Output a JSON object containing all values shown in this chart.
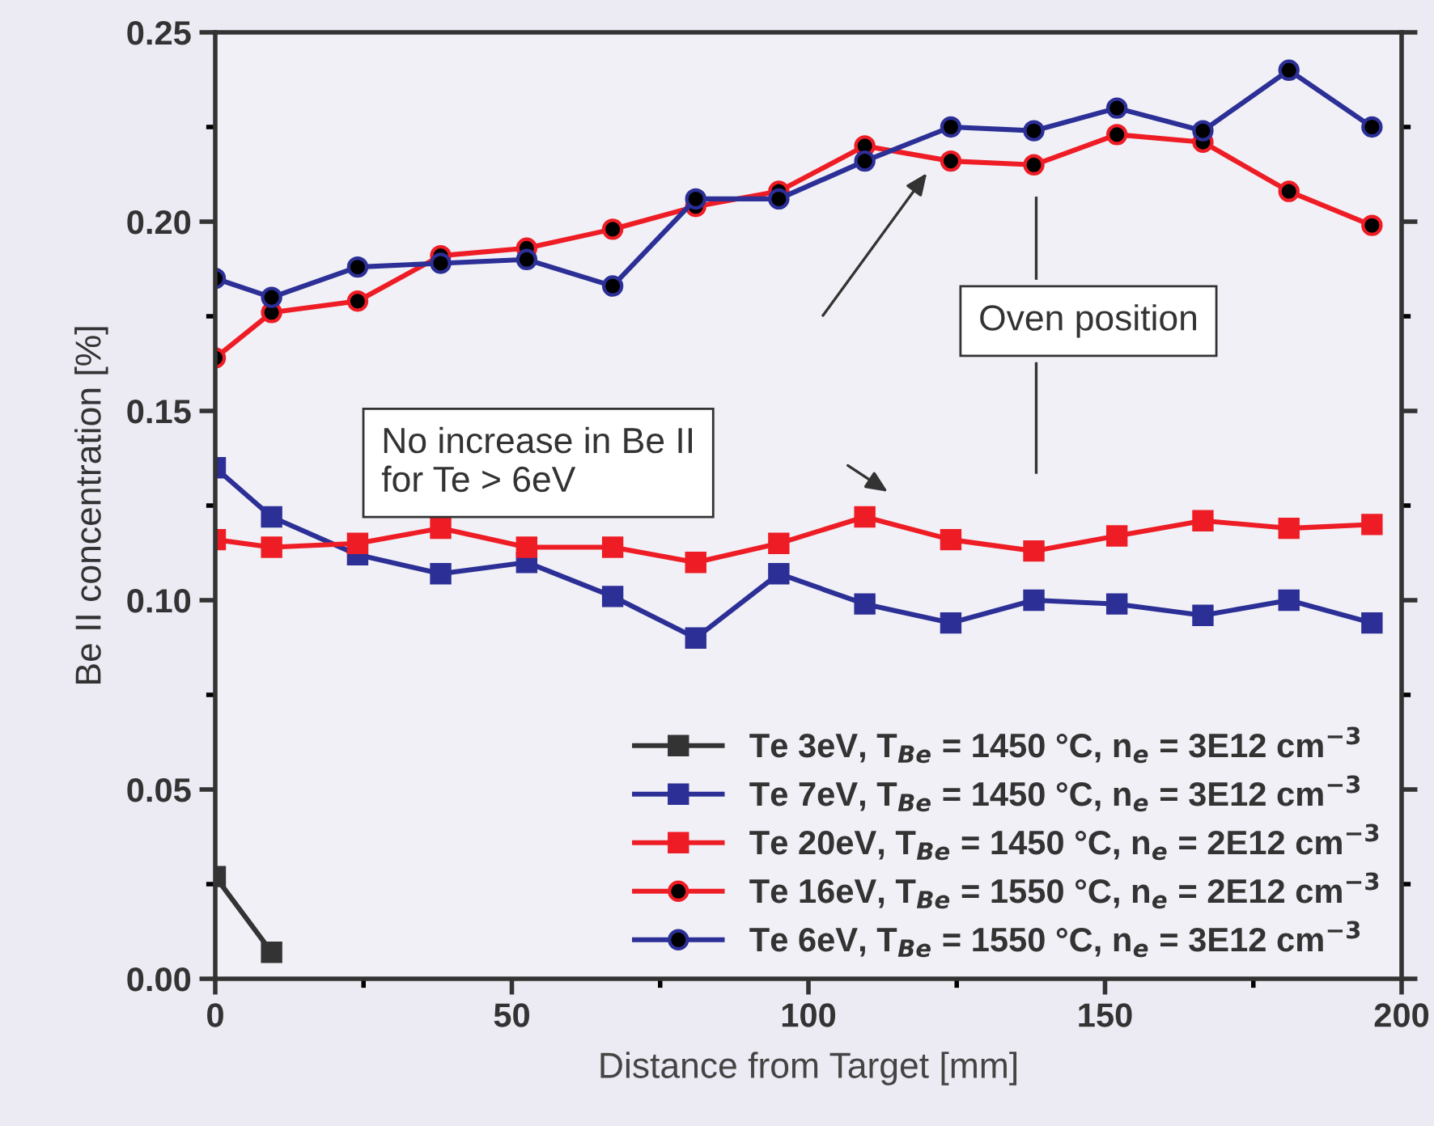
{
  "chart_data": {
    "type": "line",
    "xlabel": "Distance from Target [mm]",
    "ylabel": "Be II concentration [%]",
    "x": [
      0,
      9.5,
      24,
      38,
      52.5,
      67,
      81,
      95,
      109.5,
      124,
      138,
      152,
      166.5,
      181,
      195
    ],
    "series": [
      {
        "name": "Te 3eV, T$_{Be}$ = 1450 °C, n$_{e}$ = 3E12 cm$^{−3}$",
        "color": "#333333",
        "marker": "square",
        "values": [
          0.027,
          0.007,
          null,
          null,
          null,
          null,
          null,
          null,
          null,
          null,
          null,
          null,
          null,
          null,
          null
        ]
      },
      {
        "name": "Te 7eV, T$_{Be}$ = 1450 °C, n$_{e}$ = 3E12 cm$^{−3}$",
        "color": "#2b2f96",
        "marker": "square",
        "values": [
          0.135,
          0.122,
          0.112,
          0.107,
          0.11,
          0.101,
          0.09,
          0.107,
          0.099,
          0.094,
          0.1,
          0.099,
          0.096,
          0.1,
          0.094
        ]
      },
      {
        "name": "Te 20eV, T$_{Be}$ = 1450 °C, n$_{e}$ = 2E12 cm$^{−3}$",
        "color": "#ee1c25",
        "marker": "square",
        "values": [
          0.116,
          0.114,
          0.115,
          0.119,
          0.114,
          0.114,
          0.11,
          0.115,
          0.122,
          0.116,
          0.113,
          0.117,
          0.121,
          0.119,
          0.12
        ]
      },
      {
        "name": "Te 16eV, T$_{Be}$ = 1550 °C, n$_{e}$ = 2E12 cm$^{−3}$",
        "color": "#ee1c25",
        "marker": "circle",
        "values": [
          0.164,
          0.176,
          0.179,
          0.191,
          0.193,
          0.198,
          0.204,
          0.208,
          0.22,
          0.216,
          0.215,
          0.223,
          0.221,
          0.208,
          0.199
        ]
      },
      {
        "name": "Te 6eV, T$_{Be}$ = 1550 °C, n$_{e}$ = 3E12 cm$^{−3}$",
        "color": "#2b2f96",
        "marker": "circle",
        "values": [
          0.185,
          0.18,
          0.188,
          0.189,
          0.19,
          0.183,
          0.206,
          0.206,
          0.216,
          0.225,
          0.224,
          0.23,
          0.224,
          0.24,
          0.225
        ]
      }
    ],
    "annotations": [
      "No increase in Be II\nfor Te > 6eV",
      "Oven position"
    ],
    "xlim": [
      0,
      200
    ],
    "ylim": [
      0,
      0.25
    ],
    "xticks": [
      0,
      50,
      100,
      150,
      200
    ],
    "yticks": [
      {
        "value": 0,
        "label": "0.00"
      },
      {
        "value": 0.05,
        "label": "0.05"
      },
      {
        "value": 0.1,
        "label": "0.10"
      },
      {
        "value": 0.15,
        "label": "0.15"
      },
      {
        "value": 0.2,
        "label": "0.20"
      },
      {
        "value": 0.25,
        "label": "0.25"
      }
    ],
    "legend": "bottom right",
    "grid": false
  }
}
